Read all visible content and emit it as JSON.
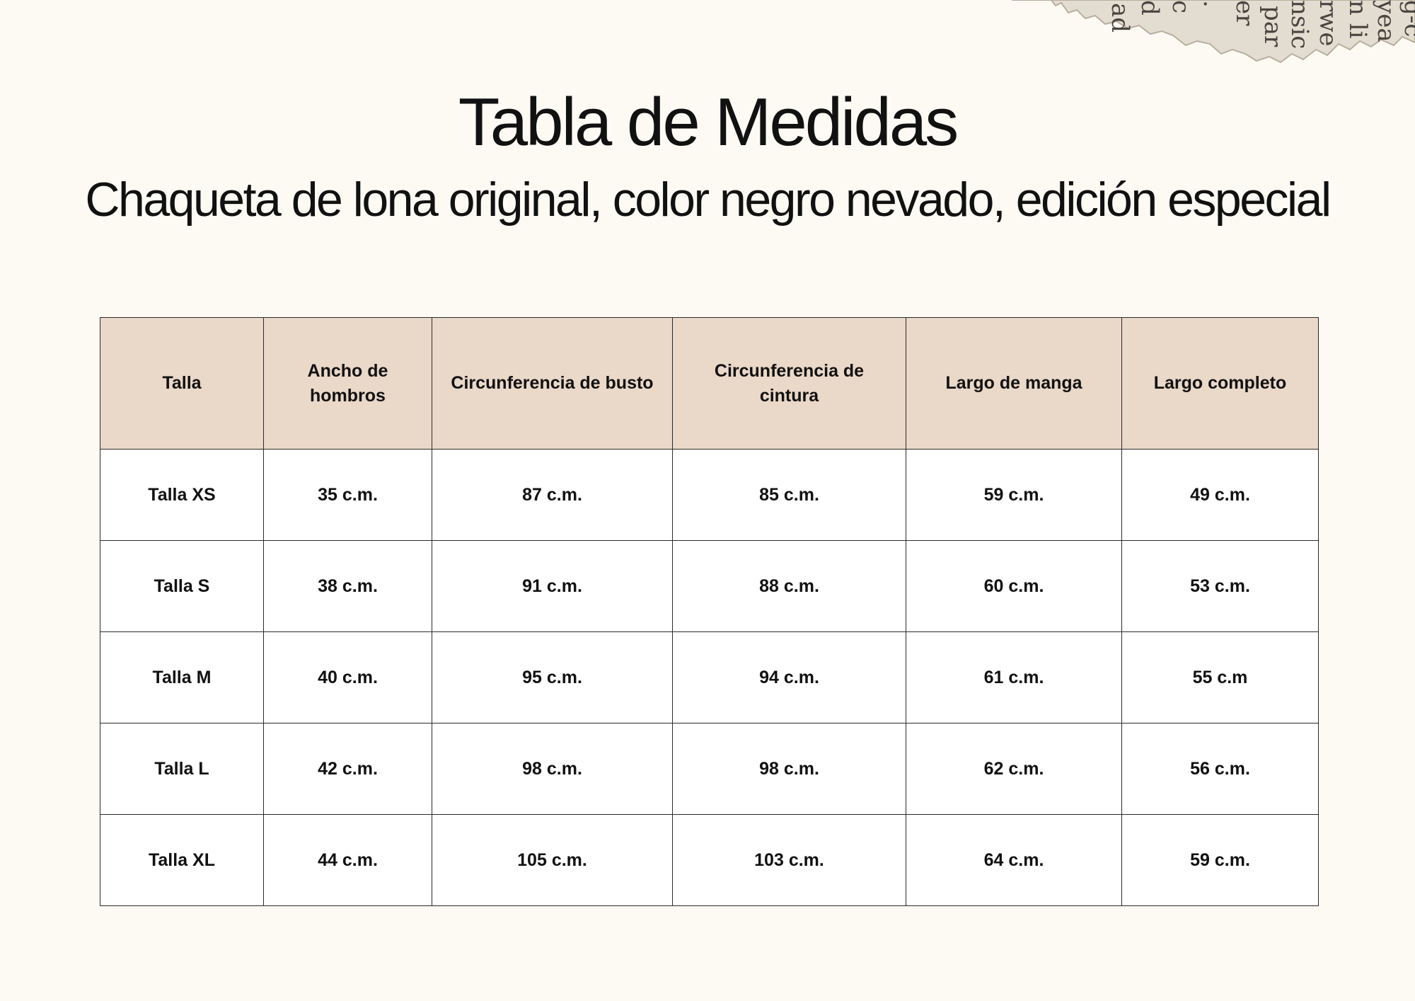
{
  "title": "Tabla de Medidas",
  "subtitle": "Chaqueta de lona original, color negro nevado, edición especial",
  "table": {
    "headers": [
      "Talla",
      "Ancho de hombros",
      "Circunferencia de busto",
      "Circunferencia de cintura",
      "Largo de manga",
      "Largo completo"
    ],
    "rows": [
      [
        "Talla XS",
        "35 c.m.",
        "87 c.m.",
        "85 c.m.",
        "59 c.m.",
        "49 c.m."
      ],
      [
        "Talla S",
        "38 c.m.",
        "91 c.m.",
        "88 c.m.",
        "60 c.m.",
        "53 c.m."
      ],
      [
        "Talla M",
        "40 c.m.",
        "95 c.m.",
        "94 c.m.",
        "61 c.m.",
        "55 c.m"
      ],
      [
        "Talla L",
        "42 c.m.",
        "98 c.m.",
        "98 c.m.",
        "62 c.m.",
        "56 c.m."
      ],
      [
        "Talla XL",
        "44 c.m.",
        "105 c.m.",
        "103 c.m.",
        "64 c.m.",
        "59 c.m."
      ]
    ]
  },
  "colors": {
    "background": "#fdfaf4",
    "header_fill": "#ead8c8",
    "cell_fill": "#ffffff",
    "border": "#2a2a2a",
    "text": "#111111"
  },
  "decoration": {
    "icon": "torn-newspaper-scrap-icon"
  }
}
